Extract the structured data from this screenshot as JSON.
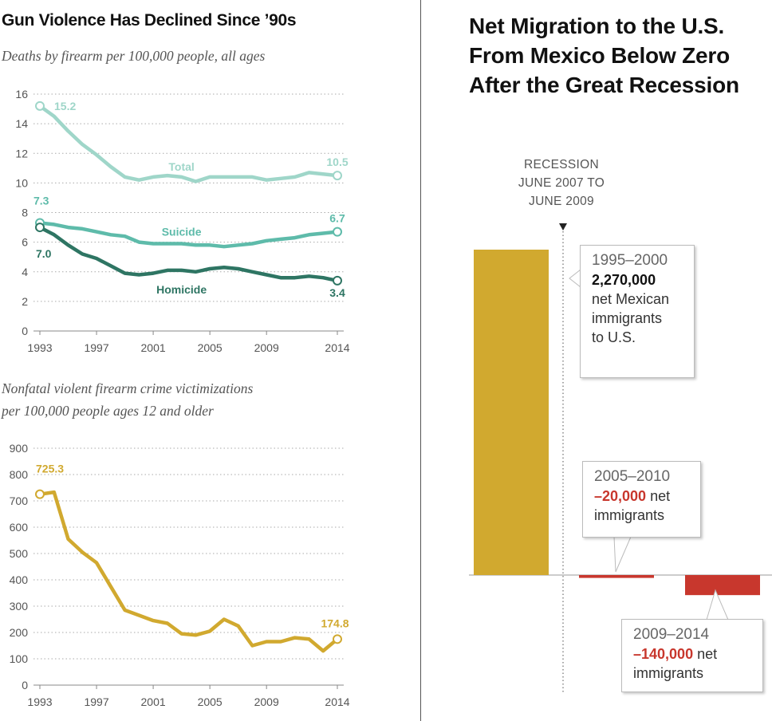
{
  "left_panel": {
    "title": "Gun Violence Has Declined Since ’90s",
    "chart1_subtitle": "Deaths by firearm per 100,000 people, all ages",
    "chart2_subtitle_line1": "Nonfatal violent firearm crime victimizations",
    "chart2_subtitle_line2": "per 100,000 people ages 12 and older"
  },
  "right_panel": {
    "title": "Net Migration to the U.S. From Mexico Below Zero After the Great Recession",
    "recession_line1": "RECESSION",
    "recession_line2": "JUNE 2007 TO",
    "recession_line3": "JUNE 2009",
    "callouts": [
      {
        "period": "1995–2000",
        "value": "2,270,000",
        "line2": "net Mexican",
        "line3": "immigrants",
        "line4": "to U.S."
      },
      {
        "period": "2005–2010",
        "value": "–20,000",
        "suffix": " net",
        "line2": "immigrants"
      },
      {
        "period": "2009–2014",
        "value": "–140,000",
        "suffix": " net",
        "line2": "immigrants"
      }
    ]
  },
  "chart_data": [
    {
      "type": "line",
      "title": "Gun Violence Has Declined Since ’90s",
      "subtitle": "Deaths by firearm per 100,000 people, all ages",
      "x": [
        1993,
        1994,
        1995,
        1996,
        1997,
        1998,
        1999,
        2000,
        2001,
        2002,
        2003,
        2004,
        2005,
        2006,
        2007,
        2008,
        2009,
        2010,
        2011,
        2012,
        2013,
        2014
      ],
      "x_ticks": [
        "1993",
        "1997",
        "2001",
        "2005",
        "2009",
        "2014"
      ],
      "x_tick_values": [
        1993,
        1997,
        2001,
        2005,
        2009,
        2014
      ],
      "ylim": [
        0,
        16
      ],
      "y_ticks": [
        0,
        2,
        4,
        6,
        8,
        10,
        12,
        14,
        16
      ],
      "series": [
        {
          "name": "Total",
          "color": "#9fd6c9",
          "label_year": 2003,
          "label_value": 11.1,
          "values": [
            15.2,
            14.5,
            13.5,
            12.6,
            11.9,
            11.1,
            10.4,
            10.2,
            10.4,
            10.5,
            10.4,
            10.1,
            10.4,
            10.4,
            10.4,
            10.4,
            10.2,
            10.3,
            10.4,
            10.7,
            10.6,
            10.5
          ],
          "start_label": "15.2",
          "end_label": "10.5"
        },
        {
          "name": "Suicide",
          "color": "#5ebbaa",
          "label_year": 2003,
          "label_value": 6.7,
          "values": [
            7.3,
            7.2,
            7.0,
            6.9,
            6.7,
            6.5,
            6.4,
            6.0,
            5.9,
            5.9,
            5.9,
            5.8,
            5.8,
            5.7,
            5.8,
            5.9,
            6.1,
            6.2,
            6.3,
            6.5,
            6.6,
            6.7
          ],
          "start_label": "7.3",
          "end_label": "6.7"
        },
        {
          "name": "Homicide",
          "color": "#2e7563",
          "label_year": 2003,
          "label_value": 2.8,
          "values": [
            7.0,
            6.5,
            5.8,
            5.2,
            4.9,
            4.4,
            3.9,
            3.8,
            3.9,
            4.1,
            4.1,
            4.0,
            4.2,
            4.3,
            4.2,
            4.0,
            3.8,
            3.6,
            3.6,
            3.7,
            3.6,
            3.4
          ],
          "start_label": "7.0",
          "end_label": "3.4"
        }
      ]
    },
    {
      "type": "line",
      "title": "Nonfatal violent firearm crime victimizations per 100,000 people ages 12 and older",
      "x": [
        1993,
        1994,
        1995,
        1996,
        1997,
        1998,
        1999,
        2000,
        2001,
        2002,
        2003,
        2004,
        2005,
        2006,
        2007,
        2008,
        2009,
        2010,
        2011,
        2012,
        2013,
        2014
      ],
      "x_ticks": [
        "1993",
        "1997",
        "2001",
        "2005",
        "2009",
        "2014"
      ],
      "x_tick_values": [
        1993,
        1997,
        2001,
        2005,
        2009,
        2014
      ],
      "ylim": [
        0,
        900
      ],
      "y_ticks": [
        0,
        100,
        200,
        300,
        400,
        500,
        600,
        700,
        800,
        900
      ],
      "series": [
        {
          "name": "Victimizations",
          "color": "#d1a92f",
          "values": [
            725.3,
            733,
            555,
            505,
            465,
            375,
            285,
            265,
            245,
            235,
            195,
            190,
            205,
            250,
            225,
            150,
            165,
            165,
            180,
            175,
            130,
            174.8
          ],
          "start_label": "725.3",
          "end_label": "174.8"
        }
      ]
    },
    {
      "type": "bar",
      "title": "Net Migration to the U.S. From Mexico Below Zero After the Great Recession",
      "categories": [
        "1995–2000",
        "2005–2010",
        "2009–2014"
      ],
      "values": [
        2270000,
        -20000,
        -140000
      ],
      "colors": [
        "#d1a92f",
        "#c8372d",
        "#c8372d"
      ],
      "ylim": [
        -400000,
        2270000
      ],
      "annotation": "Recession June 2007 to June 2009"
    }
  ]
}
